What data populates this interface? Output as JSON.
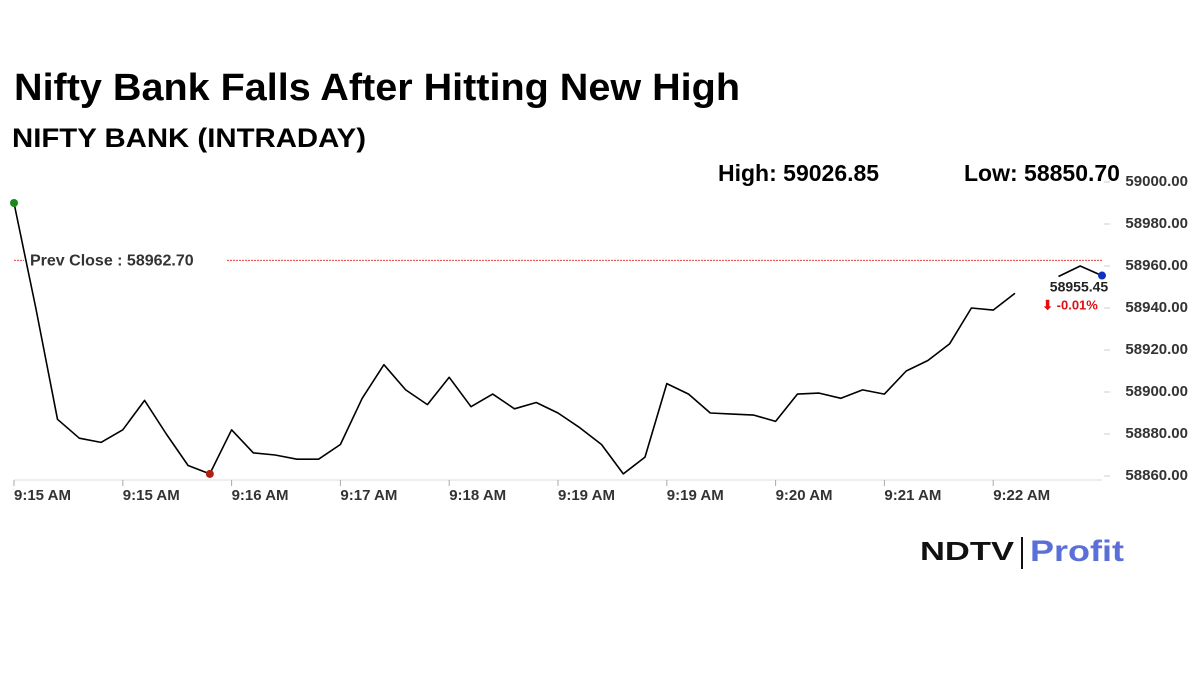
{
  "chart_data": {
    "type": "line",
    "title": "Nifty Bank Falls After Hitting New High",
    "subtitle": "NIFTY BANK (INTRADAY)",
    "high_label": "High: 59026.85",
    "low_label": "Low: 58850.70",
    "prev_close": {
      "value": 58962.7,
      "label": "Prev Close : 58962.70"
    },
    "last_label": "58955.45",
    "change_label": "⬇ -0.01%",
    "brand": [
      "NDTV",
      "Profit"
    ],
    "categories": [
      "9:15 AM",
      null,
      null,
      null,
      null,
      "9:15 AM",
      null,
      null,
      null,
      null,
      "9:16 AM",
      null,
      null,
      null,
      null,
      "9:17 AM",
      null,
      null,
      null,
      null,
      "9:18 AM",
      null,
      null,
      null,
      null,
      "9:19 AM",
      null,
      null,
      null,
      null,
      "9:19 AM",
      null,
      null,
      null,
      null,
      "9:20 AM",
      null,
      null,
      null,
      null,
      "9:21 AM",
      null,
      null,
      null,
      null,
      "9:22 AM",
      null,
      null,
      null,
      null,
      null
    ],
    "series": [
      {
        "name": "NIFTY BANK",
        "color": "#000000",
        "values": [
          58990,
          58940,
          58887,
          58878,
          58876,
          58882,
          58896,
          58880,
          58865,
          58861,
          58882,
          58871,
          58870,
          58868,
          58868,
          58875,
          58897,
          58913,
          58901,
          58894,
          58907,
          58893,
          58899,
          58892,
          58895,
          58890,
          58883,
          58875,
          58861,
          58869,
          58904,
          58899,
          58890,
          58889.5,
          58889,
          58886,
          58899,
          58899.5,
          58897,
          58901,
          58899,
          58910,
          58915,
          58923,
          58940,
          58939,
          58947,
          null,
          58955,
          58960,
          58955.45
        ]
      }
    ],
    "ylim": [
      58860,
      59000
    ],
    "yticks": [
      {
        "value": 58860,
        "label": "58860.00"
      },
      {
        "value": 58880,
        "label": "58880.00"
      },
      {
        "value": 58900,
        "label": "58900.00"
      },
      {
        "value": 58920,
        "label": "58920.00"
      },
      {
        "value": 58940,
        "label": "58940.00"
      },
      {
        "value": 58960,
        "label": "58960.00"
      },
      {
        "value": 58980,
        "label": "58980.00"
      },
      {
        "value": 59000,
        "label": "59000.00"
      }
    ],
    "grid": false
  }
}
